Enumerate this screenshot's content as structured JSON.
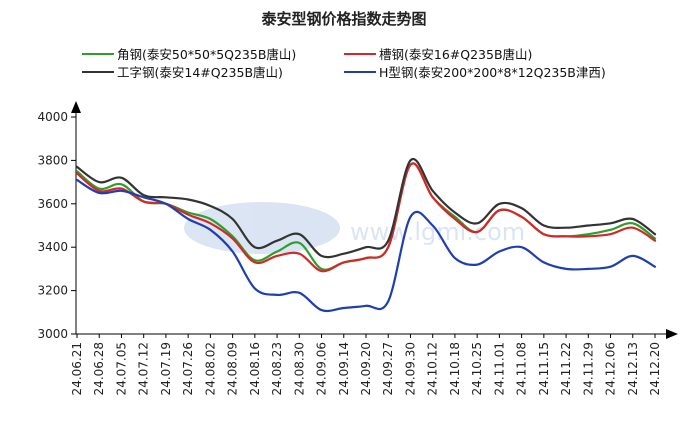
{
  "chart_data": {
    "type": "line",
    "title": "泰安型钢价格指数走势图",
    "categories": [
      "24.06.21",
      "24.06.28",
      "24.07.05",
      "24.07.12",
      "24.07.19",
      "24.07.26",
      "24.08.02",
      "24.08.09",
      "24.08.16",
      "24.08.23",
      "24.08.30",
      "24.09.06",
      "24.09.14",
      "24.09.20",
      "24.09.27",
      "24.09.30",
      "24.10.12",
      "24.10.18",
      "24.10.25",
      "24.11.01",
      "24.11.08",
      "24.11.15",
      "24.11.22",
      "24.11.29",
      "24.12.06",
      "24.12.13",
      "24.12.20"
    ],
    "y_ticks": [
      3000,
      3200,
      3400,
      3600,
      3800,
      4000
    ],
    "ylim": [
      3000,
      4000
    ],
    "series": [
      {
        "name": "角钢(泰安50*50*5Q235B唐山)",
        "color": "#2ca02c",
        "values": [
          3750,
          3670,
          3690,
          3610,
          3600,
          3560,
          3530,
          3450,
          3340,
          3380,
          3420,
          3300,
          3330,
          3350,
          3400,
          3780,
          3630,
          3540,
          3470,
          3570,
          3540,
          3460,
          3450,
          3460,
          3480,
          3510,
          3440
        ]
      },
      {
        "name": "槽钢(泰安16#Q235B唐山)",
        "color": "#d62728",
        "values": [
          3740,
          3660,
          3670,
          3610,
          3600,
          3550,
          3510,
          3440,
          3330,
          3360,
          3370,
          3290,
          3330,
          3350,
          3400,
          3780,
          3630,
          3530,
          3470,
          3570,
          3540,
          3460,
          3450,
          3450,
          3460,
          3490,
          3430
        ]
      },
      {
        "name": "工字钢(泰安14#Q235B唐山)",
        "color": "#333333",
        "values": [
          3770,
          3700,
          3720,
          3640,
          3630,
          3620,
          3590,
          3530,
          3400,
          3430,
          3460,
          3360,
          3370,
          3400,
          3430,
          3800,
          3660,
          3560,
          3510,
          3600,
          3580,
          3500,
          3490,
          3500,
          3510,
          3530,
          3460
        ]
      },
      {
        "name": "H型钢(泰安200*200*8*12Q235B津西)",
        "color": "#1f3fb0",
        "values": [
          3710,
          3650,
          3660,
          3630,
          3600,
          3530,
          3480,
          3380,
          3210,
          3180,
          3190,
          3110,
          3120,
          3130,
          3150,
          3540,
          3500,
          3350,
          3320,
          3380,
          3400,
          3330,
          3300,
          3300,
          3310,
          3360,
          3310
        ]
      }
    ],
    "grid": false,
    "legend_position": "top",
    "watermark": "www.lgmi.com"
  }
}
